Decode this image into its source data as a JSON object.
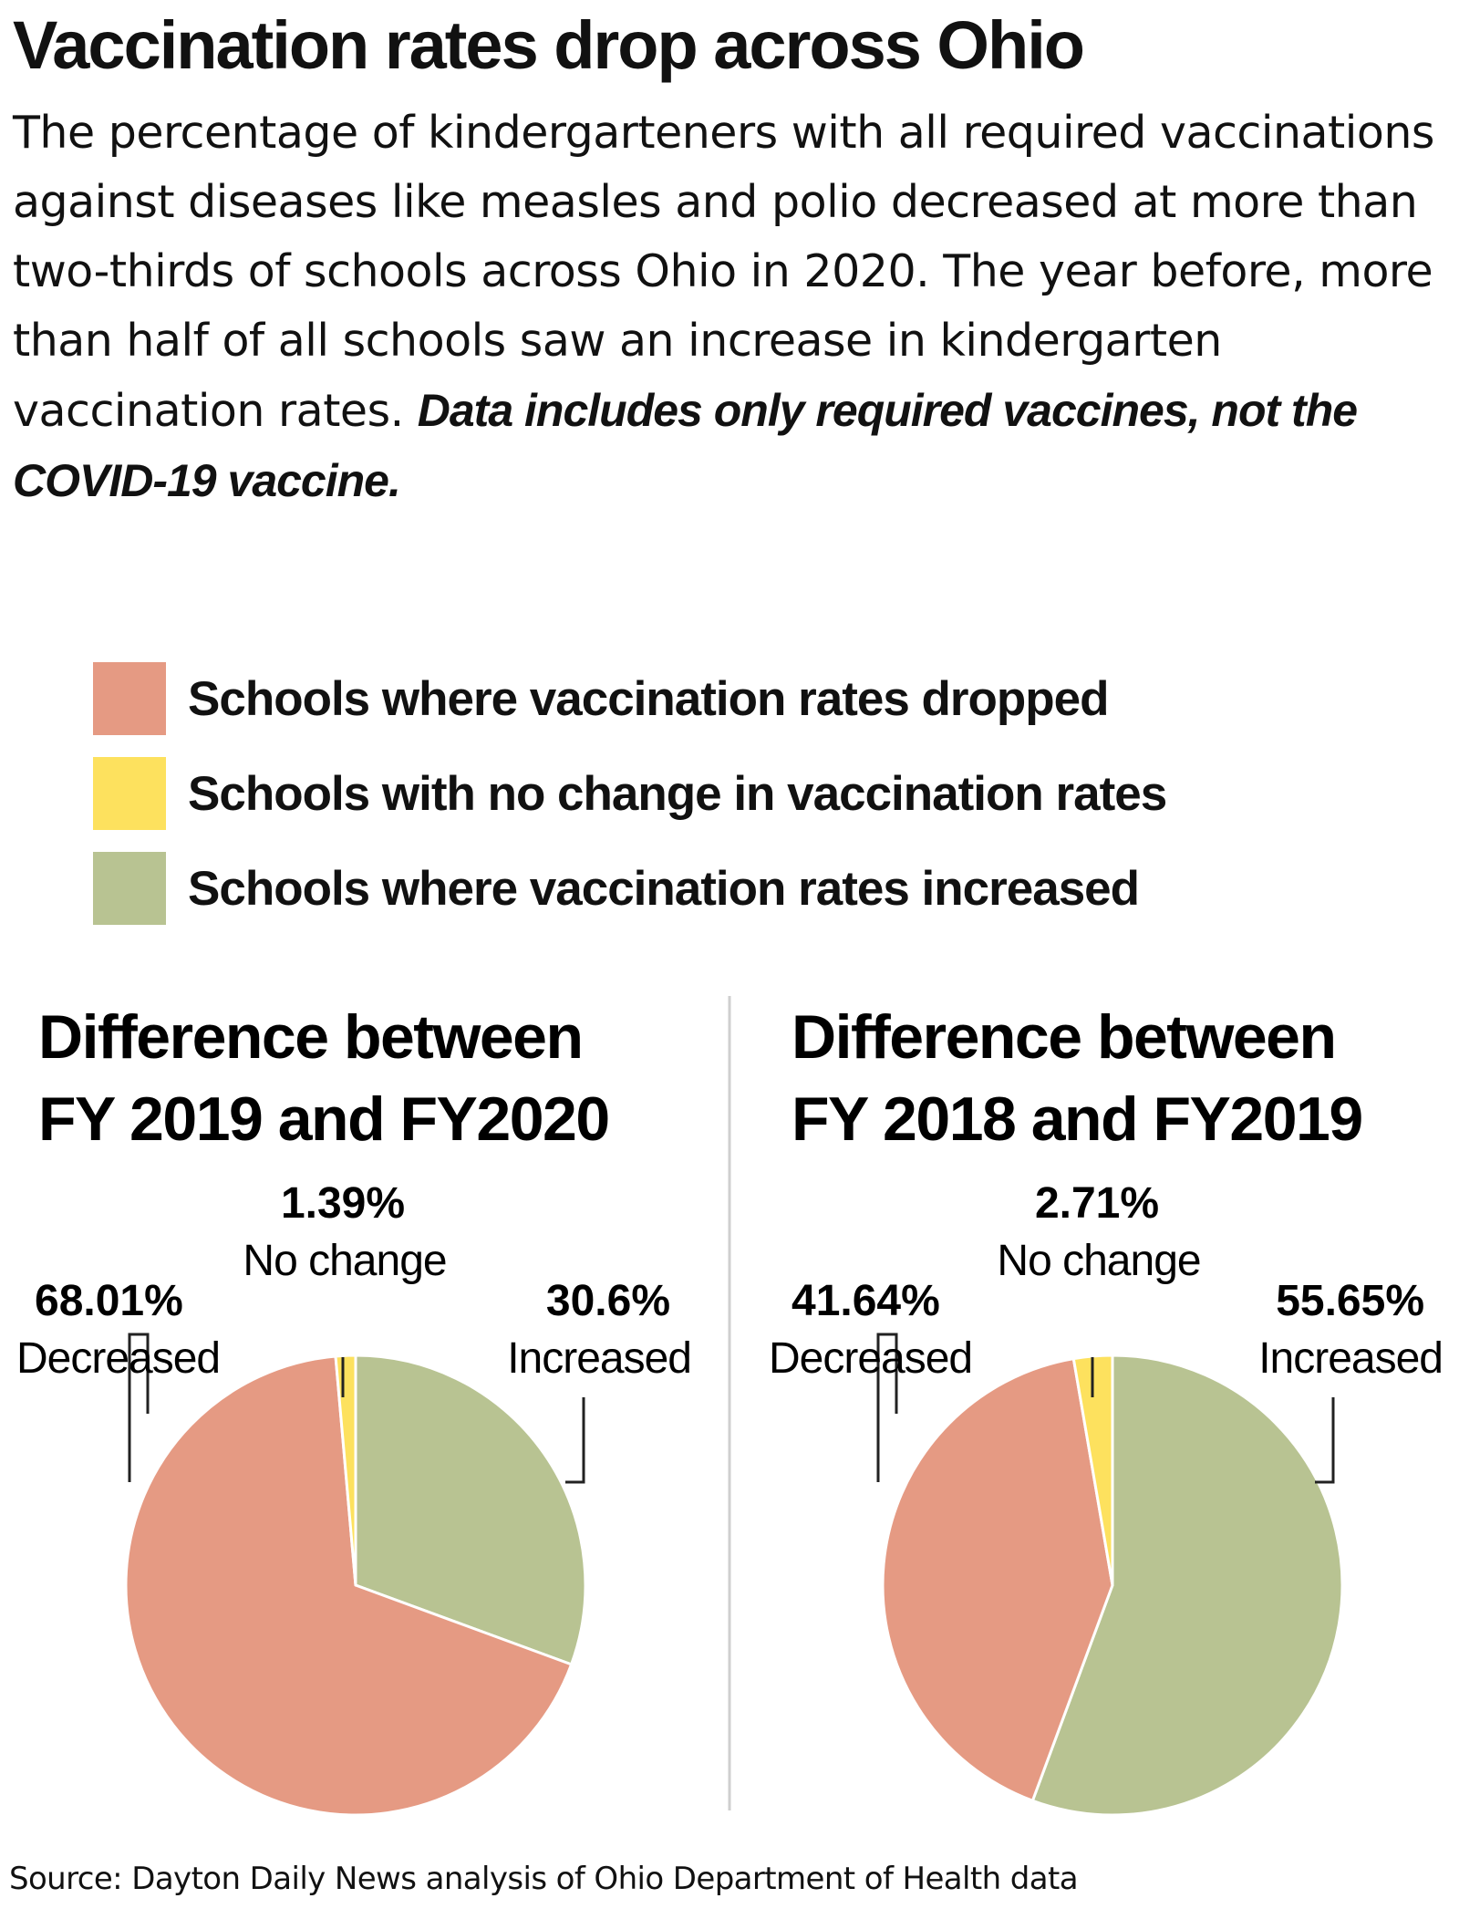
{
  "title": "Vaccination rates drop across Ohio",
  "subtitle": "The percentage of kindergarteners with all required vaccinations against diseases like measles and polio decreased at more than two-thirds of schools across Ohio in 2020. The year before, more than half of all schools saw an increase in kindergarten vaccination rates.",
  "subtitle_note": "Data includes only required vaccines, not the COVID-19 vaccine.",
  "legend": [
    {
      "label": "Schools where vaccination rates dropped",
      "color": "#e59a83"
    },
    {
      "label": "Schools with no change in vaccination rates",
      "color": "#fde15e"
    },
    {
      "label": "Schools where vaccination rates increased",
      "color": "#b8c392"
    }
  ],
  "chart_data": [
    {
      "type": "pie",
      "title": "Difference between FY 2019 and FY2020",
      "title_lines": [
        "Difference between",
        "FY 2019 and FY2020"
      ],
      "slices": [
        {
          "name": "Increased",
          "value": 30.6,
          "pct_label": "30.6%",
          "color": "#b8c392"
        },
        {
          "name": "Decreased",
          "value": 68.01,
          "pct_label": "68.01%",
          "color": "#e59a83"
        },
        {
          "name": "No change",
          "value": 1.39,
          "pct_label": "1.39%",
          "color": "#fde15e"
        }
      ]
    },
    {
      "type": "pie",
      "title": "Difference between FY 2018 and FY2019",
      "title_lines": [
        "Difference between",
        "FY 2018 and FY2019"
      ],
      "slices": [
        {
          "name": "Increased",
          "value": 55.65,
          "pct_label": "55.65%",
          "color": "#b8c392"
        },
        {
          "name": "Decreased",
          "value": 41.64,
          "pct_label": "41.64%",
          "color": "#e59a83"
        },
        {
          "name": "No change",
          "value": 2.71,
          "pct_label": "2.71%",
          "color": "#fde15e"
        }
      ]
    }
  ],
  "source": "Source: Dayton Daily News analysis of Ohio Department of Health data"
}
